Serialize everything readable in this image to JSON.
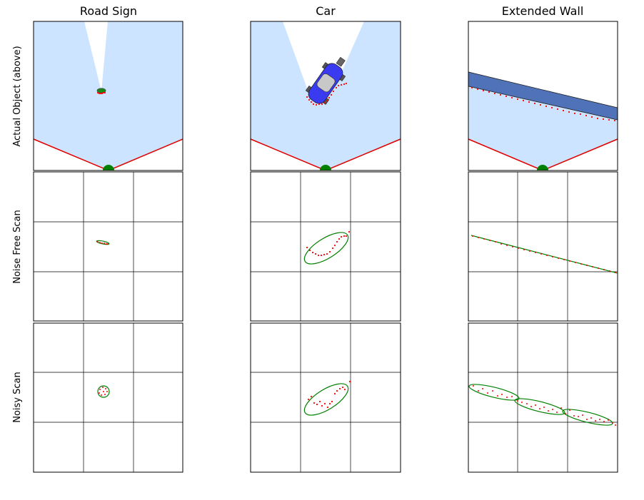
{
  "columns": [
    {
      "title": "Road Sign"
    },
    {
      "title": "Car"
    },
    {
      "title": "Extended Wall"
    }
  ],
  "rows": [
    {
      "label": "Actual Object (above)"
    },
    {
      "label": "Noise Free Scan"
    },
    {
      "label": "Noisy Scan"
    }
  ],
  "colors": {
    "fov_fill": "#cce4ff",
    "fov_edge": "#e00000",
    "sensor": "#008000",
    "points": "#ff0000",
    "ellipse": "#008000",
    "car_body": "#3a3af0",
    "wall": "#4f72b8",
    "grid": "#000000"
  },
  "icons": {
    "sensor": "green-semicircle",
    "road_sign": "green-ellipse",
    "car": "top-down-car",
    "wall": "blue-bar"
  }
}
